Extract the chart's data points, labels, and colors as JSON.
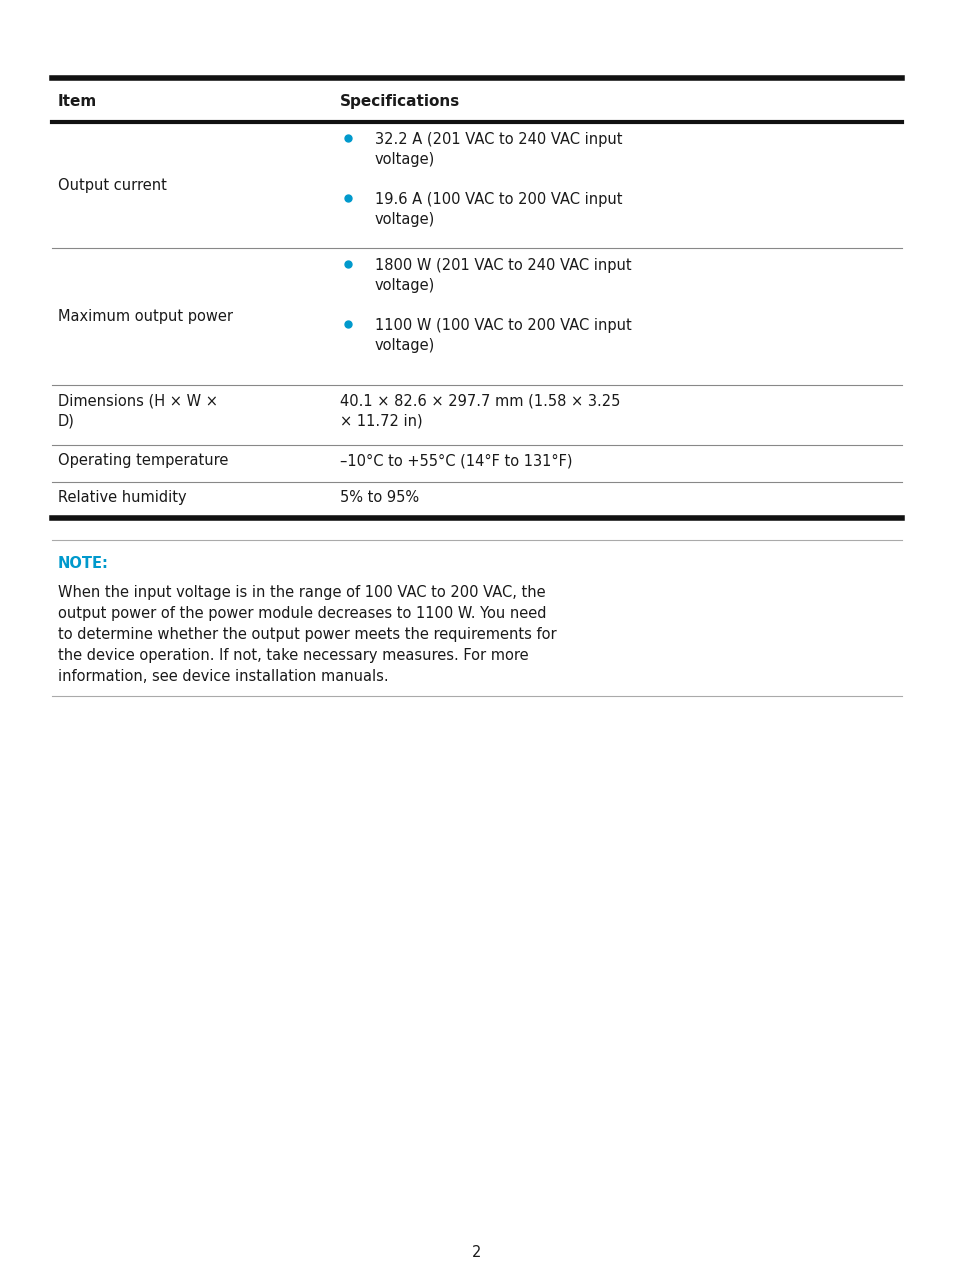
{
  "bg_color": "#ffffff",
  "text_color": "#1a1a1a",
  "cyan_color": "#0099cc",
  "bullet_color": "#0099cc",
  "header_row": [
    "Item",
    "Specifications"
  ],
  "rows": [
    {
      "col1": "Output current",
      "col2_bullets": [
        "32.2 A (201 VAC to 240 VAC input\nvoltage)",
        "19.6 A (100 VAC to 200 VAC input\nvoltage)"
      ]
    },
    {
      "col1": "Maximum output power",
      "col2_bullets": [
        "1800 W (201 VAC to 240 VAC input\nvoltage)",
        "1100 W (100 VAC to 200 VAC input\nvoltage)"
      ]
    },
    {
      "col1": "Dimensions (H × W ×\nD)",
      "col2_plain": "40.1 × 82.6 × 297.7 mm (1.58 × 3.25\n× 11.72 in)"
    },
    {
      "col1": "Operating temperature",
      "col2_plain": "–10°C to +55°C (14°F to 131°F)"
    },
    {
      "col1": "Relative humidity",
      "col2_plain": "5% to 95%"
    }
  ],
  "note_label": "NOTE:",
  "note_lines": [
    "When the input voltage is in the range of 100 VAC to 200 VAC, the",
    "output power of the power module decreases to 1100 W. You need",
    "to determine whether the output power meets the requirements for",
    "the device operation. If not, take necessary measures. For more",
    "information, see device installation manuals."
  ],
  "page_number": "2",
  "font_size_body": 10.5,
  "font_size_header": 11,
  "font_size_note_label": 10.5,
  "font_size_note_body": 10.5
}
